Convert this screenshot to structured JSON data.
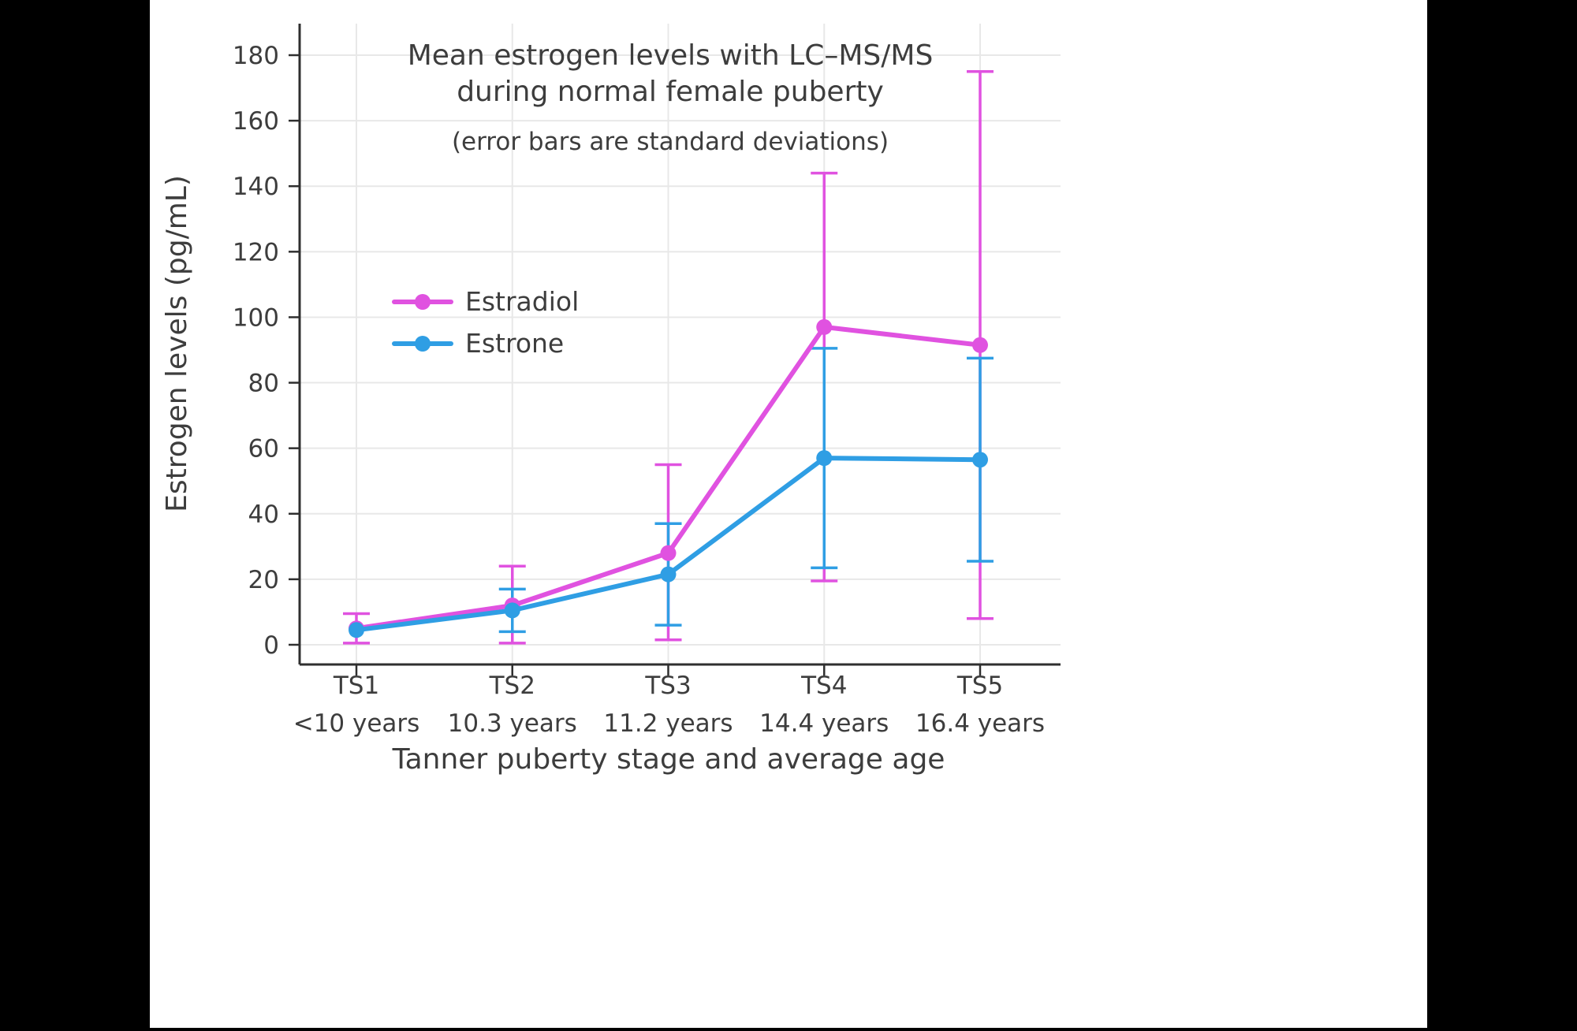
{
  "colors": {
    "background": "#000000",
    "panel": "#ffffff",
    "grid": "#e8e8e8",
    "axis": "#2f2f2f",
    "text": "#3d3d3d"
  },
  "chart_data": {
    "type": "line",
    "title_line1": "Mean estrogen levels with LC–MS/MS",
    "title_line2": "during normal female puberty",
    "subtitle": "(error bars are standard deviations)",
    "xlabel": "Tanner puberty stage and average age",
    "ylabel": "Estrogen levels (pg/mL)",
    "ylim": [
      0,
      190
    ],
    "yticks": [
      0,
      20,
      40,
      60,
      80,
      100,
      120,
      140,
      160,
      180
    ],
    "grid": true,
    "legend_position": "inside-upper-left",
    "categories": [
      {
        "stage": "TS1",
        "age": "<10 years"
      },
      {
        "stage": "TS2",
        "age": "10.3 years"
      },
      {
        "stage": "TS3",
        "age": "11.2 years"
      },
      {
        "stage": "TS4",
        "age": "14.4 years"
      },
      {
        "stage": "TS5",
        "age": "16.4 years"
      }
    ],
    "series": [
      {
        "name": "Estradiol",
        "color": "#e052e0",
        "values": [
          5,
          12,
          28,
          97,
          91.5
        ],
        "sd_low": [
          0.5,
          0.5,
          1.5,
          19.5,
          8
        ],
        "sd_high": [
          9.5,
          24,
          55,
          144,
          175
        ]
      },
      {
        "name": "Estrone",
        "color": "#2f9ee4",
        "values": [
          4.5,
          10.5,
          21.5,
          57,
          56.5
        ],
        "sd_low": [
          null,
          4,
          6,
          23.5,
          25.5
        ],
        "sd_high": [
          null,
          17,
          37,
          90.5,
          87.5
        ]
      }
    ]
  }
}
